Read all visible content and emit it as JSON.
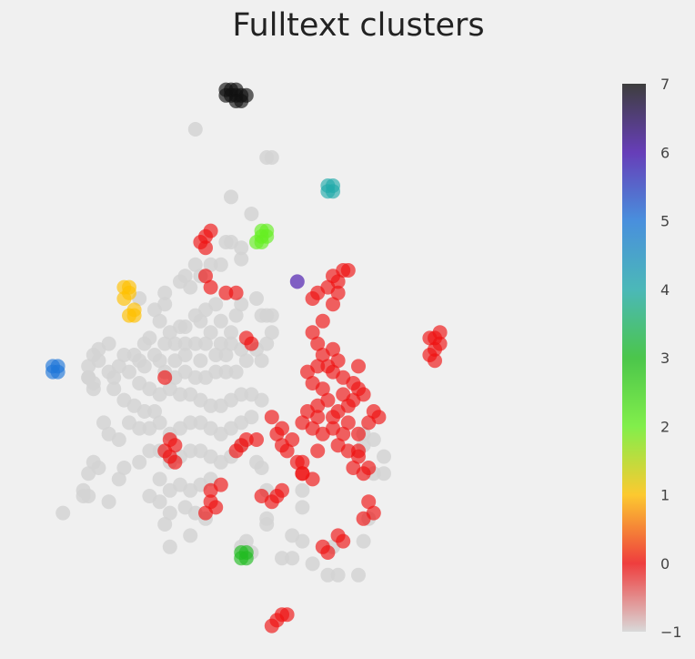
{
  "chart_data": {
    "type": "scatter",
    "title": "Fulltext clusters",
    "xlabel": "",
    "ylabel": "",
    "xlim": [
      0,
      100
    ],
    "ylim": [
      0,
      100
    ],
    "grid": false,
    "legend": "none",
    "colorbar": {
      "label": "",
      "range": [
        -1,
        7
      ],
      "ticks": [
        -1,
        0,
        1,
        2,
        3,
        4,
        5,
        6,
        7
      ],
      "tick_labels": [
        "−1",
        "0",
        "1",
        "2",
        "3",
        "4",
        "5",
        "6",
        "7"
      ]
    },
    "cluster_colors": {
      "-1": "#d3d3d3",
      "0": "#ee1111",
      "1": "#ffc000",
      "2": "#66ee22",
      "3": "#22bb22",
      "4": "#22aaaa",
      "5": "#1f77d8",
      "6": "#4411aa",
      "7": "#111111"
    },
    "series": [
      {
        "cluster": -1,
        "points": [
          [
            33,
            90
          ],
          [
            47,
            85
          ],
          [
            48,
            85
          ],
          [
            44,
            75
          ],
          [
            40,
            70
          ],
          [
            42,
            69
          ],
          [
            38,
            66
          ],
          [
            36,
            66
          ],
          [
            33,
            66
          ],
          [
            34,
            64
          ],
          [
            31,
            64
          ],
          [
            32,
            62
          ],
          [
            27,
            61
          ],
          [
            30,
            63
          ],
          [
            35,
            58
          ],
          [
            37,
            59
          ],
          [
            33,
            57
          ],
          [
            38,
            56
          ],
          [
            31,
            55
          ],
          [
            34,
            56
          ],
          [
            30,
            55
          ],
          [
            28,
            54
          ],
          [
            27,
            52
          ],
          [
            29,
            52
          ],
          [
            31,
            52
          ],
          [
            33,
            52
          ],
          [
            35,
            52
          ],
          [
            36,
            54
          ],
          [
            38,
            52
          ],
          [
            40,
            52
          ],
          [
            39,
            50
          ],
          [
            37,
            50
          ],
          [
            34,
            49
          ],
          [
            31,
            50
          ],
          [
            29,
            49
          ],
          [
            26,
            49
          ],
          [
            23,
            48
          ],
          [
            22,
            49
          ],
          [
            21,
            50
          ],
          [
            23,
            52
          ],
          [
            24,
            53
          ],
          [
            25,
            50
          ],
          [
            27,
            47
          ],
          [
            29,
            46
          ],
          [
            31,
            47
          ],
          [
            33,
            46
          ],
          [
            35,
            46
          ],
          [
            37,
            47
          ],
          [
            39,
            47
          ],
          [
            41,
            47
          ],
          [
            43,
            49
          ],
          [
            42,
            51
          ],
          [
            40,
            54
          ],
          [
            45,
            51
          ],
          [
            47,
            52
          ],
          [
            46,
            49
          ],
          [
            48,
            57
          ],
          [
            46,
            57
          ],
          [
            48,
            54
          ],
          [
            42,
            59
          ],
          [
            41,
            57
          ],
          [
            19,
            50
          ],
          [
            18,
            48
          ],
          [
            17,
            46
          ],
          [
            16,
            47
          ],
          [
            14,
            49
          ],
          [
            13,
            50
          ],
          [
            12,
            48
          ],
          [
            14,
            51
          ],
          [
            16,
            52
          ],
          [
            20,
            47
          ],
          [
            22,
            45
          ],
          [
            24,
            44
          ],
          [
            26,
            43
          ],
          [
            28,
            44
          ],
          [
            30,
            43
          ],
          [
            32,
            43
          ],
          [
            34,
            42
          ],
          [
            36,
            41
          ],
          [
            38,
            41
          ],
          [
            40,
            42
          ],
          [
            42,
            43
          ],
          [
            44,
            43
          ],
          [
            46,
            42
          ],
          [
            25,
            40
          ],
          [
            23,
            40
          ],
          [
            21,
            41
          ],
          [
            19,
            42
          ],
          [
            17,
            44
          ],
          [
            20,
            38
          ],
          [
            22,
            37
          ],
          [
            24,
            37
          ],
          [
            26,
            38
          ],
          [
            28,
            36
          ],
          [
            30,
            37
          ],
          [
            32,
            38
          ],
          [
            34,
            38
          ],
          [
            36,
            37
          ],
          [
            38,
            36
          ],
          [
            40,
            37
          ],
          [
            42,
            38
          ],
          [
            44,
            39
          ],
          [
            18,
            35
          ],
          [
            16,
            36
          ],
          [
            15,
            38
          ],
          [
            24,
            33
          ],
          [
            26,
            33
          ],
          [
            28,
            31
          ],
          [
            30,
            32
          ],
          [
            32,
            33
          ],
          [
            34,
            33
          ],
          [
            36,
            32
          ],
          [
            38,
            31
          ],
          [
            40,
            32
          ],
          [
            42,
            34
          ],
          [
            45,
            31
          ],
          [
            26,
            28
          ],
          [
            28,
            26
          ],
          [
            30,
            27
          ],
          [
            32,
            26
          ],
          [
            34,
            27
          ],
          [
            36,
            28
          ],
          [
            24,
            25
          ],
          [
            26,
            24
          ],
          [
            28,
            22
          ],
          [
            31,
            23
          ],
          [
            33,
            22
          ],
          [
            35,
            21
          ],
          [
            18,
            28
          ],
          [
            19,
            30
          ],
          [
            22,
            31
          ],
          [
            14,
            30
          ],
          [
            13,
            31
          ],
          [
            16,
            24
          ],
          [
            12,
            29
          ],
          [
            12,
            25
          ],
          [
            11,
            25
          ],
          [
            13,
            45
          ],
          [
            12,
            46
          ],
          [
            27,
            20
          ],
          [
            32,
            18
          ],
          [
            28,
            16
          ],
          [
            42,
            16
          ],
          [
            43,
            17
          ],
          [
            44,
            15
          ],
          [
            47,
            20
          ],
          [
            47,
            21
          ],
          [
            52,
            18
          ],
          [
            50,
            14
          ],
          [
            52,
            14
          ],
          [
            54,
            17
          ],
          [
            56,
            13
          ],
          [
            59,
            11
          ],
          [
            61,
            11
          ],
          [
            65,
            11
          ],
          [
            60,
            16
          ],
          [
            66,
            17
          ],
          [
            67,
            21
          ],
          [
            68,
            29
          ],
          [
            66,
            34
          ],
          [
            66,
            36
          ],
          [
            68,
            35
          ],
          [
            70,
            32
          ],
          [
            70,
            29
          ],
          [
            54,
            26
          ],
          [
            54,
            23
          ],
          [
            47,
            26
          ],
          [
            46,
            30
          ],
          [
            12,
            46
          ],
          [
            13,
            44
          ],
          [
            22,
            60
          ],
          [
            25,
            58
          ],
          [
            27,
            59
          ],
          [
            26,
            56
          ],
          [
            11,
            26
          ],
          [
            7,
            22
          ],
          [
            47,
            57
          ],
          [
            45,
            60
          ],
          [
            42,
            67
          ],
          [
            39,
            70
          ],
          [
            40,
            78
          ]
        ]
      },
      {
        "cluster": 0,
        "points": [
          [
            35,
            71
          ],
          [
            36,
            72
          ],
          [
            34,
            70
          ],
          [
            35,
            69
          ],
          [
            35,
            64
          ],
          [
            36,
            62
          ],
          [
            39,
            61
          ],
          [
            41,
            61
          ],
          [
            43,
            53
          ],
          [
            44,
            52
          ],
          [
            27,
            46
          ],
          [
            28,
            35
          ],
          [
            29,
            34
          ],
          [
            27,
            33
          ],
          [
            28,
            32
          ],
          [
            29,
            31
          ],
          [
            38,
            27
          ],
          [
            36,
            26
          ],
          [
            36,
            24
          ],
          [
            35,
            22
          ],
          [
            37,
            23
          ],
          [
            42,
            34
          ],
          [
            41,
            33
          ],
          [
            43,
            35
          ],
          [
            45,
            35
          ],
          [
            48,
            39
          ],
          [
            50,
            37
          ],
          [
            49,
            36
          ],
          [
            52,
            35
          ],
          [
            50,
            34
          ],
          [
            51,
            33
          ],
          [
            53,
            31
          ],
          [
            54,
            31
          ],
          [
            54,
            29
          ],
          [
            56,
            28
          ],
          [
            46,
            25
          ],
          [
            48,
            24
          ],
          [
            49,
            25
          ],
          [
            50,
            26
          ],
          [
            54,
            29
          ],
          [
            57,
            33
          ],
          [
            58,
            36
          ],
          [
            60,
            37
          ],
          [
            62,
            36
          ],
          [
            61,
            34
          ],
          [
            63,
            33
          ],
          [
            65,
            32
          ],
          [
            64,
            30
          ],
          [
            66,
            29
          ],
          [
            67,
            30
          ],
          [
            65,
            33
          ],
          [
            63,
            38
          ],
          [
            61,
            40
          ],
          [
            59,
            42
          ],
          [
            58,
            44
          ],
          [
            56,
            45
          ],
          [
            55,
            47
          ],
          [
            57,
            48
          ],
          [
            60,
            47
          ],
          [
            62,
            46
          ],
          [
            64,
            45
          ],
          [
            65,
            44
          ],
          [
            64,
            42
          ],
          [
            66,
            43
          ],
          [
            62,
            43
          ],
          [
            58,
            50
          ],
          [
            57,
            52
          ],
          [
            56,
            54
          ],
          [
            58,
            56
          ],
          [
            56,
            60
          ],
          [
            57,
            61
          ],
          [
            59,
            62
          ],
          [
            60,
            64
          ],
          [
            61,
            63
          ],
          [
            62,
            65
          ],
          [
            63,
            65
          ],
          [
            61,
            61
          ],
          [
            60,
            59
          ],
          [
            60,
            51
          ],
          [
            61,
            49
          ],
          [
            59,
            48
          ],
          [
            57,
            41
          ],
          [
            55,
            40
          ],
          [
            54,
            38
          ],
          [
            56,
            37
          ],
          [
            57,
            39
          ],
          [
            60,
            39
          ],
          [
            63,
            41
          ],
          [
            65,
            48
          ],
          [
            67,
            38
          ],
          [
            68,
            40
          ],
          [
            65,
            36
          ],
          [
            67,
            24
          ],
          [
            68,
            22
          ],
          [
            66,
            21
          ],
          [
            61,
            18
          ],
          [
            62,
            17
          ],
          [
            58,
            16
          ],
          [
            59,
            15
          ],
          [
            50,
            4
          ],
          [
            51,
            4
          ],
          [
            49,
            3
          ],
          [
            48,
            2
          ],
          [
            80,
            51
          ],
          [
            81,
            52
          ],
          [
            79,
            50
          ],
          [
            80,
            53
          ],
          [
            81,
            54
          ],
          [
            79,
            53
          ],
          [
            80,
            49
          ],
          [
            69,
            39
          ]
        ]
      },
      {
        "cluster": 1,
        "points": [
          [
            19,
            60
          ],
          [
            20,
            61
          ],
          [
            19,
            62
          ],
          [
            20,
            62
          ],
          [
            21,
            58
          ],
          [
            21,
            57
          ],
          [
            20,
            57
          ]
        ]
      },
      {
        "cluster": 2,
        "points": [
          [
            45,
            70
          ],
          [
            46,
            71
          ],
          [
            47,
            71
          ],
          [
            46,
            72
          ],
          [
            47,
            72
          ],
          [
            46,
            70
          ]
        ]
      },
      {
        "cluster": 3,
        "points": [
          [
            42,
            14
          ],
          [
            43,
            15
          ],
          [
            42,
            15
          ],
          [
            43,
            14
          ]
        ]
      },
      {
        "cluster": 4,
        "points": [
          [
            59,
            80
          ],
          [
            60,
            79
          ],
          [
            60,
            80
          ],
          [
            59,
            79
          ]
        ]
      },
      {
        "cluster": 5,
        "points": [
          [
            5,
            48
          ],
          [
            6,
            48
          ],
          [
            5,
            47
          ],
          [
            6,
            47
          ]
        ]
      },
      {
        "cluster": 6,
        "points": [
          [
            53,
            63
          ]
        ]
      },
      {
        "cluster": 7,
        "points": [
          [
            39,
            96
          ],
          [
            40,
            96
          ],
          [
            41,
            97
          ],
          [
            42,
            96
          ],
          [
            43,
            96
          ],
          [
            40,
            97
          ],
          [
            41,
            96
          ],
          [
            42,
            95
          ],
          [
            41,
            95
          ],
          [
            39,
            97
          ]
        ]
      }
    ]
  }
}
